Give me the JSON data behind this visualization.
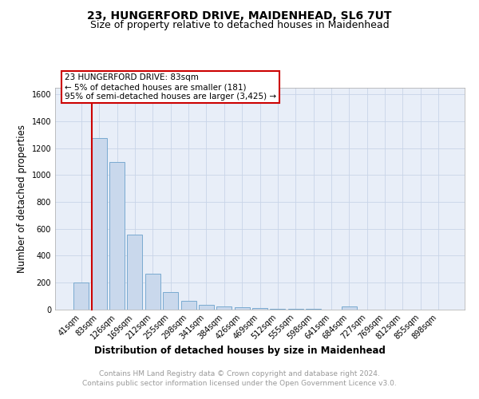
{
  "title": "23, HUNGERFORD DRIVE, MAIDENHEAD, SL6 7UT",
  "subtitle": "Size of property relative to detached houses in Maidenhead",
  "xlabel": "Distribution of detached houses by size in Maidenhead",
  "ylabel": "Number of detached properties",
  "categories": [
    "41sqm",
    "83sqm",
    "126sqm",
    "169sqm",
    "212sqm",
    "255sqm",
    "298sqm",
    "341sqm",
    "384sqm",
    "426sqm",
    "469sqm",
    "512sqm",
    "555sqm",
    "598sqm",
    "641sqm",
    "684sqm",
    "727sqm",
    "769sqm",
    "812sqm",
    "855sqm",
    "898sqm"
  ],
  "values": [
    200,
    1275,
    1100,
    555,
    265,
    128,
    63,
    33,
    20,
    12,
    8,
    5,
    3,
    2,
    0,
    20,
    0,
    0,
    0,
    0,
    0
  ],
  "bar_color": "#c9d8ec",
  "bar_edge_color": "#7aaad0",
  "highlight_bar_index": 1,
  "annotation_text": [
    "23 HUNGERFORD DRIVE: 83sqm",
    "← 5% of detached houses are smaller (181)",
    "95% of semi-detached houses are larger (3,425) →"
  ],
  "red_color": "#cc0000",
  "ylim": [
    0,
    1650
  ],
  "yticks": [
    0,
    200,
    400,
    600,
    800,
    1000,
    1200,
    1400,
    1600
  ],
  "grid_color": "#c8d4e8",
  "background_color": "#e8eef8",
  "footer_line1": "Contains HM Land Registry data © Crown copyright and database right 2024.",
  "footer_line2": "Contains public sector information licensed under the Open Government Licence v3.0.",
  "title_fontsize": 10,
  "subtitle_fontsize": 9,
  "axis_label_fontsize": 8.5,
  "tick_fontsize": 7,
  "annotation_fontsize": 7.5,
  "footer_fontsize": 6.5
}
